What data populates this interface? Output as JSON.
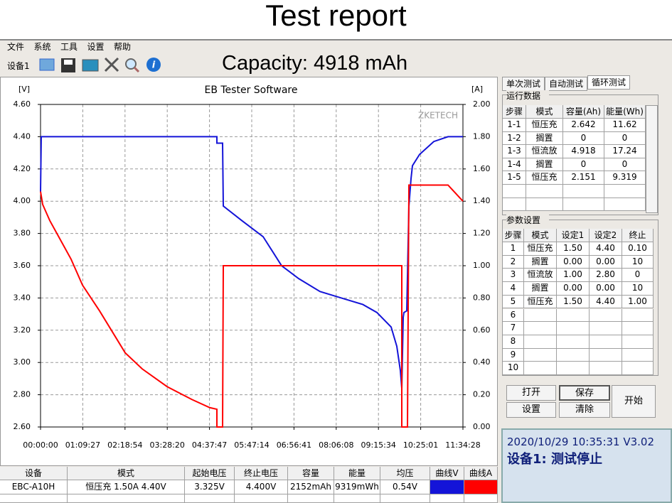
{
  "header": {
    "title": "Test report"
  },
  "menu": [
    "文件",
    "系统",
    "工具",
    "设置",
    "帮助"
  ],
  "toolbar": {
    "device": "设备1",
    "capacity": "Capacity: 4918 mAh"
  },
  "chart_data": {
    "type": "line",
    "title": "EB Tester Software",
    "y_label": "[V]",
    "y2_label": "[A]",
    "watermark": "ZKETECH",
    "grid": true,
    "xlim": [
      0,
      41668
    ],
    "xticks": [
      {
        "value": 0,
        "label": "00:00:00"
      },
      {
        "value": 4167,
        "label": "01:09:27"
      },
      {
        "value": 8334,
        "label": "02:18:54"
      },
      {
        "value": 12500,
        "label": "03:28:20"
      },
      {
        "value": 16667,
        "label": "04:37:47"
      },
      {
        "value": 20834,
        "label": "05:47:14"
      },
      {
        "value": 25001,
        "label": "06:56:41"
      },
      {
        "value": 29168,
        "label": "08:06:08"
      },
      {
        "value": 33334,
        "label": "09:15:34"
      },
      {
        "value": 37501,
        "label": "10:25:01"
      },
      {
        "value": 41668,
        "label": "11:34:28"
      }
    ],
    "ylim": [
      2.6,
      4.6
    ],
    "yticks": [
      {
        "value": 2.6,
        "label": "2.60"
      },
      {
        "value": 2.8,
        "label": "2.80"
      },
      {
        "value": 3.0,
        "label": "3.00"
      },
      {
        "value": 3.2,
        "label": "3.20"
      },
      {
        "value": 3.4,
        "label": "3.40"
      },
      {
        "value": 3.6,
        "label": "3.60"
      },
      {
        "value": 3.8,
        "label": "3.80"
      },
      {
        "value": 4.0,
        "label": "4.00"
      },
      {
        "value": 4.2,
        "label": "4.20"
      },
      {
        "value": 4.4,
        "label": "4.40"
      },
      {
        "value": 4.6,
        "label": "4.60"
      }
    ],
    "y2lim": [
      0,
      2
    ],
    "y2ticks": [
      {
        "value": 0,
        "label": "0.00"
      },
      {
        "value": 0.2,
        "label": "0.20"
      },
      {
        "value": 0.4,
        "label": "0.40"
      },
      {
        "value": 0.6,
        "label": "0.60"
      },
      {
        "value": 0.8,
        "label": "0.80"
      },
      {
        "value": 1.0,
        "label": "1.00"
      },
      {
        "value": 1.2,
        "label": "1.20"
      },
      {
        "value": 1.4,
        "label": "1.40"
      },
      {
        "value": 1.6,
        "label": "1.60"
      },
      {
        "value": 1.8,
        "label": "1.80"
      },
      {
        "value": 2.0,
        "label": "2.00"
      }
    ],
    "series": [
      {
        "name": "曲线V",
        "color": "#1414d8",
        "axis": "y",
        "x": [
          0,
          70,
          17397,
          17397,
          17958,
          18029,
          19852,
          21957,
          23781,
          25464,
          27569,
          29673,
          31778,
          33181,
          34584,
          35145,
          35496,
          35636,
          35777,
          35847,
          36127,
          36338,
          36548,
          36688,
          37390,
          38793,
          40196,
          41668
        ],
        "values": [
          4.06,
          4.4,
          4.4,
          4.36,
          4.36,
          3.97,
          3.88,
          3.78,
          3.6,
          3.52,
          3.44,
          3.4,
          3.36,
          3.31,
          3.22,
          3.1,
          2.95,
          2.84,
          3.28,
          3.31,
          3.32,
          3.97,
          4.14,
          4.22,
          4.29,
          4.37,
          4.4,
          4.4
        ]
      },
      {
        "name": "曲线A",
        "color": "#ff0000",
        "axis": "y2",
        "x": [
          0,
          210,
          912,
          2315,
          3016,
          4139,
          5822,
          8348,
          10031,
          12487,
          14942,
          16696,
          17397,
          17397,
          17958,
          18029,
          35636,
          35636,
          36197,
          36338,
          40196,
          41668
        ],
        "values": [
          1.46,
          1.38,
          1.28,
          1.12,
          1.04,
          0.88,
          0.72,
          0.46,
          0.36,
          0.25,
          0.17,
          0.12,
          0.11,
          0,
          0,
          1.0,
          1.0,
          0,
          0,
          1.5,
          1.5,
          1.4
        ]
      }
    ]
  },
  "tabs": [
    "单次测试",
    "自动测试",
    "循环测试"
  ],
  "run_data": {
    "title": "运行数据",
    "columns": [
      "步骤",
      "模式",
      "容量(Ah)",
      "能量(Wh)"
    ],
    "rows": [
      [
        "1-1",
        "恒压充",
        "2.642",
        "11.62"
      ],
      [
        "1-2",
        "搁置",
        "0",
        "0"
      ],
      [
        "1-3",
        "恒流放",
        "4.918",
        "17.24"
      ],
      [
        "1-4",
        "搁置",
        "0",
        "0"
      ],
      [
        "1-5",
        "恒压充",
        "2.151",
        "9.319"
      ]
    ]
  },
  "params": {
    "title": "参数设置",
    "columns": [
      "步骤",
      "模式",
      "设定1",
      "设定2",
      "终止"
    ],
    "rows": [
      [
        "1",
        "恒压充",
        "1.50",
        "4.40",
        "0.10"
      ],
      [
        "2",
        "搁置",
        "0.00",
        "0.00",
        "10"
      ],
      [
        "3",
        "恒流放",
        "1.00",
        "2.80",
        "0"
      ],
      [
        "4",
        "搁置",
        "0.00",
        "0.00",
        "10"
      ],
      [
        "5",
        "恒压充",
        "1.50",
        "4.40",
        "1.00"
      ],
      [
        "6"
      ],
      [
        "7"
      ],
      [
        "8"
      ],
      [
        "9"
      ],
      [
        "10"
      ]
    ]
  },
  "buttons": {
    "open": "打开",
    "save": "保存",
    "start": "开始",
    "settings": "设置",
    "clear": "清除"
  },
  "status": {
    "time": "2020/10/29 10:35:31  V3.02",
    "state": "设备1: 测试停止"
  },
  "summary": {
    "columns": [
      "设备",
      "模式",
      "起始电压",
      "终止电压",
      "容量",
      "能量",
      "均压"
    ],
    "rows": [
      [
        "EBC-A10H",
        "恒压充  1.50A  4.40V",
        "3.325V",
        "4.400V",
        "2152mAh",
        "9319mWh",
        "0.54V"
      ]
    ]
  }
}
